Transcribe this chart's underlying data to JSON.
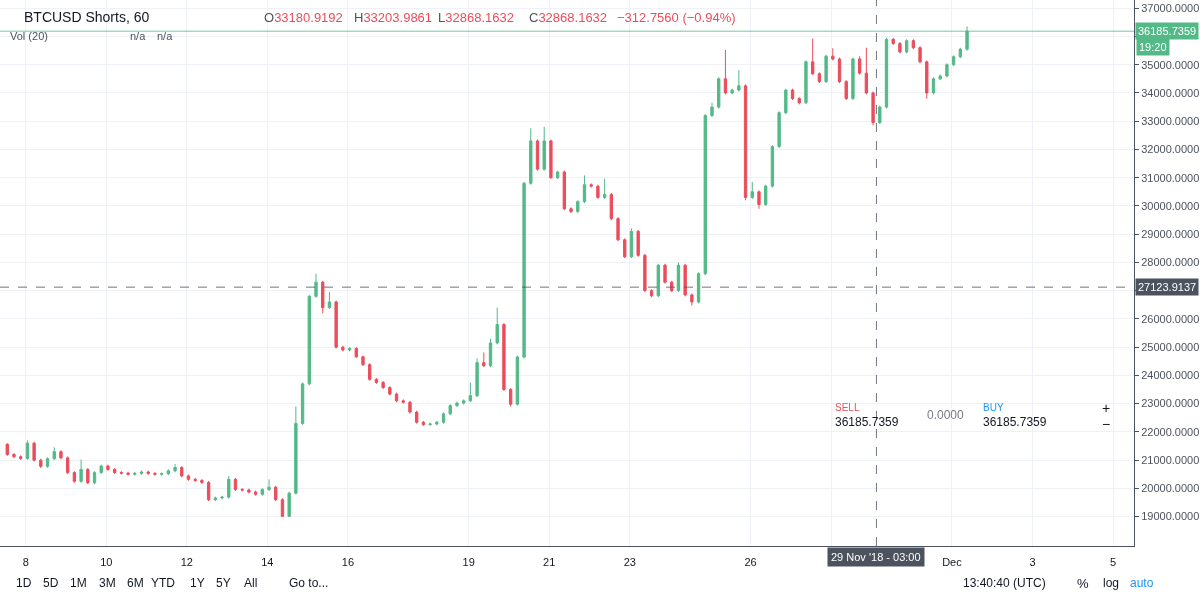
{
  "chart_data": {
    "type": "candlestick",
    "title": "BTCUSD Shorts, 60",
    "x": [
      "2018-11-07T13:00",
      "2018-11-07T17:00",
      "2018-11-07T21:00",
      "2018-11-08T01:00",
      "2018-11-08T05:00",
      "2018-11-08T09:00",
      "2018-11-08T13:00",
      "2018-11-08T17:00",
      "2018-11-08T21:00",
      "2018-11-09T01:00",
      "2018-11-09T05:00",
      "2018-11-09T09:00",
      "2018-11-09T13:00",
      "2018-11-09T17:00",
      "2018-11-09T21:00",
      "2018-11-10T01:00",
      "2018-11-10T05:00",
      "2018-11-10T09:00",
      "2018-11-10T13:00",
      "2018-11-10T17:00",
      "2018-11-10T21:00",
      "2018-11-11T01:00",
      "2018-11-11T05:00",
      "2018-11-11T09:00",
      "2018-11-11T13:00",
      "2018-11-11T17:00",
      "2018-11-11T21:00",
      "2018-11-12T01:00",
      "2018-11-12T05:00",
      "2018-11-12T09:00",
      "2018-11-12T13:00",
      "2018-11-12T17:00",
      "2018-11-12T21:00",
      "2018-11-13T01:00",
      "2018-11-13T05:00",
      "2018-11-13T09:00",
      "2018-11-13T13:00",
      "2018-11-13T17:00",
      "2018-11-13T21:00",
      "2018-11-14T01:00",
      "2018-11-14T05:00",
      "2018-11-14T09:00",
      "2018-11-14T13:00",
      "2018-11-14T17:00",
      "2018-11-14T21:00",
      "2018-11-15T01:00",
      "2018-11-15T05:00",
      "2018-11-15T09:00",
      "2018-11-15T13:00",
      "2018-11-15T17:00",
      "2018-11-15T21:00",
      "2018-11-16T01:00",
      "2018-11-16T05:00",
      "2018-11-16T09:00",
      "2018-11-16T13:00",
      "2018-11-16T17:00",
      "2018-11-16T21:00",
      "2018-11-17T01:00",
      "2018-11-17T05:00",
      "2018-11-17T09:00",
      "2018-11-17T13:00",
      "2018-11-17T17:00",
      "2018-11-17T21:00",
      "2018-11-18T01:00",
      "2018-11-18T05:00",
      "2018-11-18T09:00",
      "2018-11-18T13:00",
      "2018-11-18T17:00",
      "2018-11-18T21:00",
      "2018-11-19T01:00",
      "2018-11-19T05:00",
      "2018-11-19T09:00",
      "2018-11-19T13:00",
      "2018-11-19T17:00",
      "2018-11-19T21:00",
      "2018-11-20T01:00",
      "2018-11-20T05:00",
      "2018-11-20T09:00",
      "2018-11-20T13:00",
      "2018-11-20T17:00",
      "2018-11-20T21:00",
      "2018-11-21T01:00",
      "2018-11-21T05:00",
      "2018-11-21T09:00",
      "2018-11-21T13:00",
      "2018-11-21T17:00",
      "2018-11-21T21:00",
      "2018-11-22T01:00",
      "2018-11-22T05:00",
      "2018-11-22T09:00",
      "2018-11-22T13:00",
      "2018-11-22T17:00",
      "2018-11-22T21:00",
      "2018-11-23T01:00",
      "2018-11-23T05:00",
      "2018-11-23T09:00",
      "2018-11-23T13:00",
      "2018-11-23T17:00",
      "2018-11-23T21:00",
      "2018-11-24T01:00",
      "2018-11-24T05:00",
      "2018-11-24T09:00",
      "2018-11-24T13:00",
      "2018-11-24T17:00",
      "2018-11-24T21:00",
      "2018-11-25T01:00",
      "2018-11-25T05:00",
      "2018-11-25T09:00",
      "2018-11-25T13:00",
      "2018-11-25T17:00",
      "2018-11-25T21:00",
      "2018-11-26T01:00",
      "2018-11-26T05:00",
      "2018-11-26T09:00",
      "2018-11-26T13:00",
      "2018-11-26T17:00",
      "2018-11-26T21:00",
      "2018-11-27T01:00",
      "2018-11-27T05:00",
      "2018-11-27T09:00",
      "2018-11-27T13:00",
      "2018-11-27T17:00",
      "2018-11-27T21:00",
      "2018-11-28T01:00",
      "2018-11-28T05:00",
      "2018-11-28T09:00",
      "2018-11-28T13:00",
      "2018-11-28T17:00",
      "2018-11-28T21:00",
      "2018-11-29T01:00",
      "2018-11-29T05:00",
      "2018-11-29T09:00",
      "2018-11-29T13:00",
      "2018-11-29T17:00",
      "2018-11-29T21:00",
      "2018-11-30T01:00",
      "2018-11-30T05:00",
      "2018-11-30T09:00",
      "2018-11-30T13:00",
      "2018-11-30T17:00",
      "2018-11-30T21:00",
      "2018-12-01T01:00",
      "2018-12-01T05:00",
      "2018-12-01T09:00"
    ],
    "ohlc": [
      [
        21560,
        21600,
        21150,
        21200
      ],
      [
        21200,
        21250,
        21070,
        21120
      ],
      [
        21120,
        21170,
        21010,
        21060
      ],
      [
        21060,
        21700,
        21010,
        21600
      ],
      [
        21600,
        21650,
        20950,
        21000
      ],
      [
        21000,
        21050,
        20720,
        20780
      ],
      [
        20780,
        21100,
        20730,
        21050
      ],
      [
        21050,
        21450,
        21000,
        21300
      ],
      [
        21300,
        21350,
        21030,
        21080
      ],
      [
        21080,
        21130,
        20510,
        20560
      ],
      [
        20560,
        20610,
        20200,
        20250
      ],
      [
        20250,
        21020,
        20200,
        20670
      ],
      [
        20670,
        20720,
        20150,
        20200
      ],
      [
        20200,
        20610,
        20150,
        20560
      ],
      [
        20560,
        20840,
        20510,
        20790
      ],
      [
        20790,
        20840,
        20620,
        20670
      ],
      [
        20670,
        20720,
        20510,
        20560
      ],
      [
        20560,
        20610,
        20490,
        20540
      ],
      [
        20540,
        20590,
        20450,
        20500
      ],
      [
        20500,
        20580,
        20450,
        20530
      ],
      [
        20530,
        20630,
        20480,
        20580
      ],
      [
        20580,
        20630,
        20480,
        20530
      ],
      [
        20530,
        20580,
        20450,
        20500
      ],
      [
        20500,
        20570,
        20450,
        20520
      ],
      [
        20520,
        20670,
        20470,
        20620
      ],
      [
        20620,
        20860,
        20570,
        20740
      ],
      [
        20740,
        20790,
        20390,
        20440
      ],
      [
        20440,
        20490,
        20270,
        20320
      ],
      [
        20320,
        20370,
        20230,
        20280
      ],
      [
        20280,
        20330,
        20160,
        20210
      ],
      [
        20210,
        20260,
        19550,
        19600
      ],
      [
        19600,
        19710,
        19550,
        19660
      ],
      [
        19660,
        19740,
        19610,
        19690
      ],
      [
        19690,
        20440,
        19640,
        20320
      ],
      [
        20320,
        20370,
        19910,
        19960
      ],
      [
        19960,
        20010,
        19890,
        19940
      ],
      [
        19940,
        19990,
        19820,
        19870
      ],
      [
        19870,
        19920,
        19740,
        19790
      ],
      [
        19790,
        20010,
        19740,
        19960
      ],
      [
        19960,
        20320,
        19910,
        20040
      ],
      [
        20040,
        20090,
        19550,
        19600
      ],
      [
        19600,
        19650,
        18990,
        19010
      ],
      [
        19010,
        19880,
        18990,
        19830
      ],
      [
        19830,
        22900,
        19780,
        22300
      ],
      [
        22300,
        23750,
        22250,
        23700
      ],
      [
        23700,
        26850,
        23650,
        26800
      ],
      [
        26800,
        27600,
        26750,
        27300
      ],
      [
        27300,
        27350,
        26200,
        26400
      ],
      [
        26400,
        26950,
        26350,
        26600
      ],
      [
        26600,
        26650,
        24950,
        25000
      ],
      [
        25000,
        25050,
        24850,
        24900
      ],
      [
        24900,
        25000,
        24850,
        24950
      ],
      [
        24950,
        25000,
        24610,
        24660
      ],
      [
        24660,
        24700,
        24330,
        24380
      ],
      [
        24380,
        24430,
        23810,
        23860
      ],
      [
        23860,
        23910,
        23700,
        23750
      ],
      [
        23750,
        23800,
        23520,
        23570
      ],
      [
        23570,
        23620,
        23290,
        23340
      ],
      [
        23340,
        23390,
        23050,
        23100
      ],
      [
        23100,
        23150,
        23000,
        23050
      ],
      [
        23050,
        23100,
        22650,
        22700
      ],
      [
        22700,
        22750,
        22290,
        22340
      ],
      [
        22340,
        22390,
        22210,
        22260
      ],
      [
        22260,
        22330,
        22210,
        22280
      ],
      [
        22280,
        22390,
        22230,
        22340
      ],
      [
        22340,
        22690,
        22290,
        22640
      ],
      [
        22640,
        22980,
        22590,
        22930
      ],
      [
        22930,
        23070,
        22880,
        23020
      ],
      [
        23020,
        23150,
        22970,
        23100
      ],
      [
        23100,
        23750,
        23050,
        23280
      ],
      [
        23280,
        24600,
        23230,
        24450
      ],
      [
        24450,
        24810,
        24290,
        24340
      ],
      [
        24340,
        25300,
        24290,
        25150
      ],
      [
        25150,
        26400,
        25100,
        25800
      ],
      [
        25800,
        25850,
        23450,
        23500
      ],
      [
        23500,
        23550,
        22900,
        22980
      ],
      [
        22980,
        24700,
        22930,
        24650
      ],
      [
        24650,
        30850,
        24600,
        30800
      ],
      [
        30800,
        32750,
        30750,
        32300
      ],
      [
        32300,
        32350,
        31250,
        31300
      ],
      [
        31300,
        32800,
        31250,
        32300
      ],
      [
        32300,
        32350,
        30950,
        31000
      ],
      [
        31000,
        31250,
        30950,
        31200
      ],
      [
        31200,
        31250,
        29850,
        29900
      ],
      [
        29900,
        29950,
        29750,
        29800
      ],
      [
        29800,
        30200,
        29750,
        30150
      ],
      [
        30150,
        31080,
        30100,
        30750
      ],
      [
        30750,
        30800,
        30650,
        30700
      ],
      [
        30700,
        30750,
        30250,
        30300
      ],
      [
        30300,
        30960,
        30250,
        30400
      ],
      [
        30400,
        30450,
        29500,
        29550
      ],
      [
        29550,
        29600,
        28750,
        28800
      ],
      [
        28800,
        28850,
        28150,
        28200
      ],
      [
        28200,
        29200,
        28150,
        29100
      ],
      [
        29100,
        29150,
        28200,
        28250
      ],
      [
        28250,
        28300,
        26950,
        27000
      ],
      [
        27000,
        27050,
        26770,
        26820
      ],
      [
        26820,
        27950,
        26770,
        27900
      ],
      [
        27900,
        27950,
        27250,
        27300
      ],
      [
        27300,
        27350,
        26950,
        27000
      ],
      [
        27000,
        28000,
        26950,
        27900
      ],
      [
        27900,
        27950,
        26800,
        26850
      ],
      [
        26850,
        26900,
        26470,
        26600
      ],
      [
        26600,
        27650,
        26550,
        27600
      ],
      [
        27600,
        33250,
        27550,
        33200
      ],
      [
        33200,
        33650,
        33150,
        33500
      ],
      [
        33500,
        34550,
        33450,
        34500
      ],
      [
        34500,
        35520,
        33950,
        34000
      ],
      [
        34000,
        34150,
        33950,
        34100
      ],
      [
        34100,
        34800,
        34050,
        34250
      ],
      [
        34250,
        34300,
        30200,
        30300
      ],
      [
        30300,
        30850,
        30250,
        30500
      ],
      [
        30500,
        30550,
        29900,
        30050
      ],
      [
        30050,
        30750,
        30000,
        30700
      ],
      [
        30700,
        32150,
        30650,
        32100
      ],
      [
        32100,
        33350,
        32050,
        33300
      ],
      [
        33300,
        34150,
        33250,
        34100
      ],
      [
        34100,
        34150,
        33750,
        33800
      ],
      [
        33800,
        33850,
        33600,
        33650
      ],
      [
        33650,
        35150,
        33600,
        35100
      ],
      [
        35100,
        35930,
        34630,
        34680
      ],
      [
        34680,
        34730,
        34350,
        34400
      ],
      [
        34400,
        35350,
        34350,
        35300
      ],
      [
        35300,
        35580,
        35150,
        35200
      ],
      [
        35200,
        35250,
        34350,
        34400
      ],
      [
        34400,
        34450,
        33750,
        33800
      ],
      [
        33800,
        35250,
        33750,
        35200
      ],
      [
        35200,
        35300,
        34650,
        34700
      ],
      [
        34700,
        35600,
        33950,
        34000
      ],
      [
        34000,
        34050,
        32850,
        32950
      ],
      [
        32950,
        33550,
        32900,
        33500
      ],
      [
        33500,
        35950,
        33450,
        35900
      ],
      [
        35900,
        35950,
        35700,
        35750
      ],
      [
        35750,
        35800,
        35400,
        35450
      ],
      [
        35450,
        35900,
        35400,
        35850
      ],
      [
        35850,
        35900,
        35550,
        35600
      ],
      [
        35600,
        35650,
        35050,
        35100
      ],
      [
        35100,
        35150,
        33800,
        34000
      ],
      [
        34000,
        34550,
        33950,
        34500
      ],
      [
        34500,
        34650,
        34450,
        34600
      ],
      [
        34600,
        35050,
        34550,
        35000
      ],
      [
        35000,
        35330,
        34950,
        35280
      ],
      [
        35280,
        35600,
        35230,
        35550
      ],
      [
        35550,
        36350,
        35500,
        36190
      ]
    ],
    "colors": [
      "#eb4d5c",
      "#eb4d5c",
      "#eb4d5c",
      "#53b987",
      "#eb4d5c",
      "#eb4d5c",
      "#53b987",
      "#53b987",
      "#eb4d5c",
      "#eb4d5c",
      "#eb4d5c",
      "#53b987",
      "#eb4d5c",
      "#53b987",
      "#53b987",
      "#eb4d5c",
      "#eb4d5c",
      "#eb4d5c",
      "#eb4d5c",
      "#53b987",
      "#53b987",
      "#eb4d5c",
      "#eb4d5c",
      "#53b987",
      "#53b987",
      "#53b987",
      "#eb4d5c",
      "#eb4d5c",
      "#eb4d5c",
      "#eb4d5c",
      "#eb4d5c",
      "#53b987",
      "#53b987",
      "#53b987",
      "#eb4d5c",
      "#eb4d5c",
      "#eb4d5c",
      "#eb4d5c",
      "#53b987",
      "#53b987",
      "#eb4d5c",
      "#eb4d5c",
      "#53b987",
      "#53b987",
      "#53b987",
      "#53b987",
      "#53b987",
      "#eb4d5c",
      "#53b987",
      "#eb4d5c",
      "#eb4d5c",
      "#53b987",
      "#eb4d5c",
      "#eb4d5c",
      "#eb4d5c",
      "#eb4d5c",
      "#eb4d5c",
      "#eb4d5c",
      "#eb4d5c",
      "#eb4d5c",
      "#eb4d5c",
      "#eb4d5c",
      "#eb4d5c",
      "#53b987",
      "#53b987",
      "#53b987",
      "#53b987",
      "#53b987",
      "#53b987",
      "#53b987",
      "#53b987",
      "#eb4d5c",
      "#53b987",
      "#53b987",
      "#eb4d5c",
      "#eb4d5c",
      "#53b987",
      "#53b987",
      "#53b987",
      "#eb4d5c",
      "#53b987",
      "#eb4d5c",
      "#53b987",
      "#eb4d5c",
      "#eb4d5c",
      "#53b987",
      "#53b987",
      "#eb4d5c",
      "#eb4d5c",
      "#53b987",
      "#eb4d5c",
      "#eb4d5c",
      "#eb4d5c",
      "#53b987",
      "#eb4d5c",
      "#eb4d5c",
      "#eb4d5c",
      "#53b987",
      "#eb4d5c",
      "#eb4d5c",
      "#53b987",
      "#eb4d5c",
      "#eb4d5c",
      "#53b987",
      "#53b987",
      "#53b987",
      "#53b987",
      "#eb4d5c",
      "#53b987",
      "#53b987",
      "#eb4d5c",
      "#53b987",
      "#eb4d5c",
      "#53b987",
      "#53b987",
      "#53b987",
      "#53b987",
      "#eb4d5c",
      "#eb4d5c",
      "#53b987",
      "#eb4d5c",
      "#eb4d5c",
      "#53b987",
      "#eb4d5c",
      "#eb4d5c",
      "#eb4d5c",
      "#53b987",
      "#eb4d5c",
      "#eb4d5c",
      "#eb4d5c",
      "#53b987",
      "#53b987",
      "#eb4d5c",
      "#eb4d5c",
      "#53b987",
      "#eb4d5c",
      "#eb4d5c",
      "#eb4d5c",
      "#53b987",
      "#53b987",
      "#53b987",
      "#53b987",
      "#53b987",
      "#53b987"
    ],
    "xlim": [
      "2018-11-07T08:40",
      "2018-12-05T12:30"
    ],
    "xticks": [
      {
        "value": "2018-11-08",
        "label": "8"
      },
      {
        "value": "2018-11-10",
        "label": "10"
      },
      {
        "value": "2018-11-12",
        "label": "12"
      },
      {
        "value": "2018-11-14",
        "label": "14"
      },
      {
        "value": "2018-11-16",
        "label": "16"
      },
      {
        "value": "2018-11-19",
        "label": "19"
      },
      {
        "value": "2018-11-21",
        "label": "21"
      },
      {
        "value": "2018-11-23",
        "label": "23"
      },
      {
        "value": "2018-11-26",
        "label": "26"
      },
      {
        "value": "2018-11-28",
        "label": null
      },
      {
        "value": "2018-12-01",
        "label": "Dec"
      },
      {
        "value": "2018-12-03",
        "label": "3"
      },
      {
        "value": "2018-12-05",
        "label": "5"
      }
    ],
    "ylim": [
      17960,
      37290
    ],
    "yticks": [
      {
        "value": 19000,
        "label": "19000.0000"
      },
      {
        "value": 20000,
        "label": "20000.0000"
      },
      {
        "value": 21000,
        "label": "21000.0000"
      },
      {
        "value": 22000,
        "label": "22000.0000"
      },
      {
        "value": 23000,
        "label": "23000.0000"
      },
      {
        "value": 24000,
        "label": "24000.0000"
      },
      {
        "value": 25000,
        "label": "25000.0000"
      },
      {
        "value": 26000,
        "label": "26000.0000"
      },
      {
        "value": 27000,
        "label": null
      },
      {
        "value": 28000,
        "label": "28000.0000"
      },
      {
        "value": 29000,
        "label": "29000.0000"
      },
      {
        "value": 30000,
        "label": "30000.0000"
      },
      {
        "value": 31000,
        "label": "31000.0000"
      },
      {
        "value": 32000,
        "label": "32000.0000"
      },
      {
        "value": 33000,
        "label": "33000.0000"
      },
      {
        "value": 34000,
        "label": "34000.0000"
      },
      {
        "value": 35000,
        "label": "35000.0000"
      },
      {
        "value": 36000,
        "label": null
      },
      {
        "value": 37000,
        "label": "37000.0000"
      }
    ],
    "grid": true,
    "ref_lines": [
      {
        "axis": "y",
        "value": 36185.7359,
        "label": "36185.7359",
        "color": "#53b987",
        "line_style": "solid"
      },
      {
        "axis": "y",
        "value": 27123.9137,
        "label": "27123.9137",
        "color": "#4c525e",
        "line_style": "dashed"
      },
      {
        "axis": "x",
        "value": "2018-11-29T03:00",
        "label": "29 Nov '18 - 03:00",
        "color": "#4c525e",
        "line_style": "dashed"
      }
    ],
    "annotations": [
      "O33180.9192",
      "H33203.9861",
      "L32868.1632",
      "C32868.1632",
      "−312.7560 (−0.94%)",
      "Vol (20)",
      "n/a",
      "n/a",
      "19:20",
      "SELL",
      "36185.7359",
      "0.0000",
      "BUY",
      "36185.7359",
      "+",
      "−",
      "1D",
      "5D",
      "1M",
      "3M",
      "6M",
      "YTD",
      "1Y",
      "5Y",
      "All",
      "Go to...",
      "13:40:40 (UTC)",
      "%",
      "log",
      "auto"
    ]
  }
}
